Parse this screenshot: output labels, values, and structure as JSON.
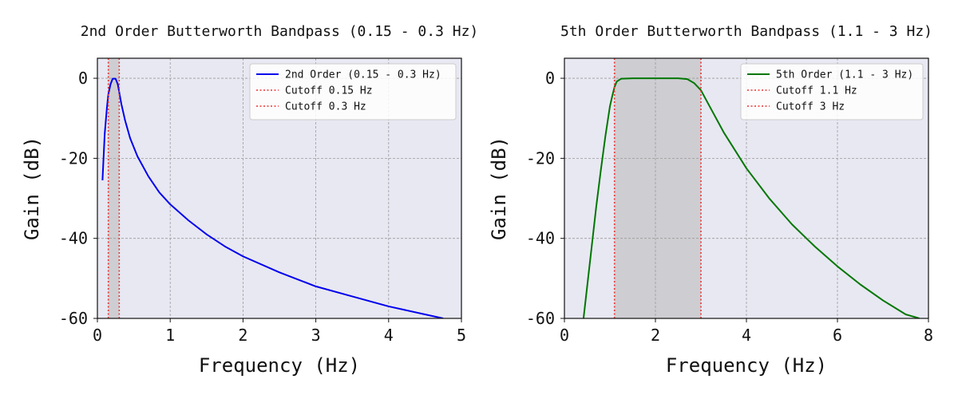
{
  "chart_data": [
    {
      "type": "line",
      "title": "2nd Order Butterworth Bandpass (0.15 - 0.3 Hz)",
      "xlabel": "Frequency (Hz)",
      "ylabel": "Gain (dB)",
      "xlim": [
        0,
        5
      ],
      "ylim": [
        -60,
        5
      ],
      "xticks": [
        0,
        1,
        2,
        3,
        4,
        5
      ],
      "yticks": [
        0,
        -20,
        -40,
        -60
      ],
      "grid": true,
      "legend_position": "top-right",
      "band": {
        "low": 0.15,
        "high": 0.3
      },
      "series": [
        {
          "name": "2nd Order (0.15 - 0.3 Hz)",
          "color": "#0000ee",
          "x": [
            0.07,
            0.1,
            0.13,
            0.15,
            0.18,
            0.21,
            0.25,
            0.28,
            0.3,
            0.33,
            0.38,
            0.45,
            0.55,
            0.7,
            0.85,
            1.0,
            1.25,
            1.5,
            1.75,
            2.0,
            2.5,
            3.0,
            3.5,
            4.0,
            4.5,
            4.75
          ],
          "y": [
            -25.5,
            -14,
            -7.5,
            -4,
            -1.5,
            -0.1,
            -0.1,
            -1.5,
            -3.5,
            -6.5,
            -10.5,
            -15,
            -19.5,
            -24.5,
            -28.5,
            -31.5,
            -35.5,
            -39,
            -42,
            -44.5,
            -48.5,
            -52,
            -54.5,
            -57,
            -59,
            -60
          ]
        },
        {
          "name": "Cutoff 0.15 Hz",
          "color": "#ee3333",
          "style": "dotted",
          "vline": 0.15
        },
        {
          "name": "Cutoff 0.3 Hz",
          "color": "#ee3333",
          "style": "dotted",
          "vline": 0.3
        }
      ]
    },
    {
      "type": "line",
      "title": "5th Order Butterworth Bandpass (1.1 - 3 Hz)",
      "xlabel": "Frequency (Hz)",
      "ylabel": "Gain (dB)",
      "xlim": [
        0,
        8
      ],
      "ylim": [
        -60,
        5
      ],
      "xticks": [
        0,
        2,
        4,
        6,
        8
      ],
      "yticks": [
        0,
        -20,
        -40,
        -60
      ],
      "grid": true,
      "legend_position": "top-right",
      "band": {
        "low": 1.1,
        "high": 3.0
      },
      "series": [
        {
          "name": "5th Order (1.1 - 3 Hz)",
          "color": "#007700",
          "x": [
            0.42,
            0.5,
            0.6,
            0.7,
            0.8,
            0.9,
            1.0,
            1.05,
            1.1,
            1.15,
            1.25,
            1.5,
            2.0,
            2.5,
            2.7,
            2.85,
            3.0,
            3.2,
            3.5,
            4.0,
            4.5,
            5.0,
            5.5,
            6.0,
            6.5,
            7.0,
            7.5,
            7.8
          ],
          "y": [
            -60,
            -52,
            -42,
            -32,
            -23,
            -14.5,
            -7,
            -4.5,
            -2.2,
            -0.8,
            -0.1,
            0,
            0,
            0,
            -0.2,
            -1.2,
            -3.0,
            -7.2,
            -13.5,
            -22.5,
            -30,
            -36.5,
            -42,
            -47,
            -51.5,
            -55.5,
            -59,
            -60
          ]
        },
        {
          "name": "Cutoff 1.1 Hz",
          "color": "#ee3333",
          "style": "dotted",
          "vline": 1.1
        },
        {
          "name": "Cutoff 3 Hz",
          "color": "#ee3333",
          "style": "dotted",
          "vline": 3.0
        }
      ]
    }
  ]
}
